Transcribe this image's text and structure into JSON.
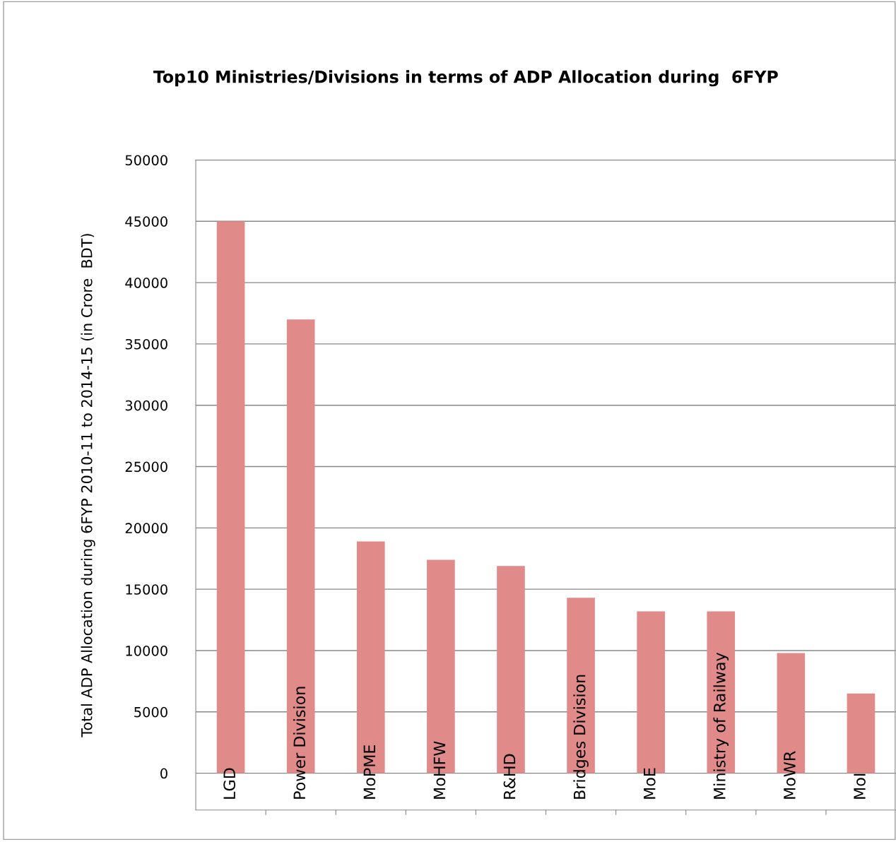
{
  "chart_data": {
    "type": "bar",
    "title": "Top10 Ministries/Divisions in terms of ADP Allocation during  6FYP",
    "ylabel": "Total ADP Allocation during 6FYP 2010-11 to 2014-15 (in Crore  BDT)",
    "categories": [
      "LGD",
      "Power Division",
      "MoPME",
      "MoHFW",
      "R&HD",
      "Bridges Division",
      "MoE",
      "Ministry of Railway",
      "MoWR",
      "MoI"
    ],
    "values": [
      45000,
      37000,
      18900,
      17400,
      16900,
      14300,
      13200,
      13200,
      9800,
      6500
    ],
    "color": "#e08a8a",
    "ylim": [
      -3000,
      50000
    ],
    "yticks": [
      0,
      5000,
      10000,
      15000,
      20000,
      25000,
      30000,
      35000,
      40000,
      45000,
      50000
    ],
    "grid": "y",
    "legend": false
  }
}
